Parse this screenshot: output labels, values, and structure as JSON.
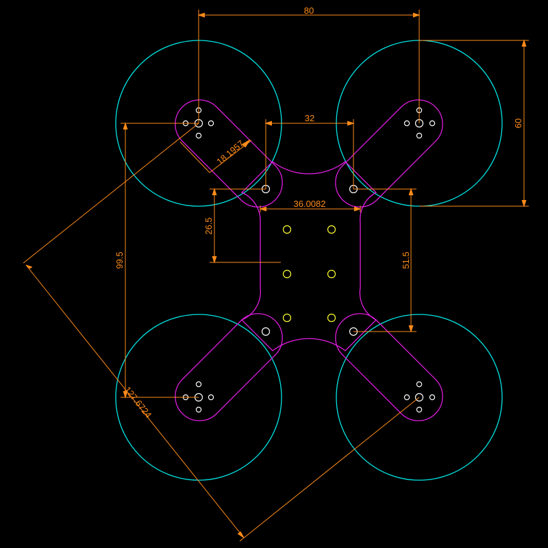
{
  "colors": {
    "background": "#000000",
    "rotor": "#00E5E5",
    "frame": "#E11EE1",
    "dimension": "#FF8C1A",
    "hole_white": "#FFFFFF",
    "hole_yellow": "#FFFF33"
  },
  "dimensions": {
    "motor_spacing_x": "80",
    "rotor_diameter": "60",
    "plate_hole_spacing": "32",
    "arm_width": "18.1957",
    "center_plate_width": "36.0082",
    "height_offset": "26.5",
    "plate_hole_span": "51.5",
    "motor_spacing_y": "99.5",
    "diagonal": "127.6724"
  }
}
